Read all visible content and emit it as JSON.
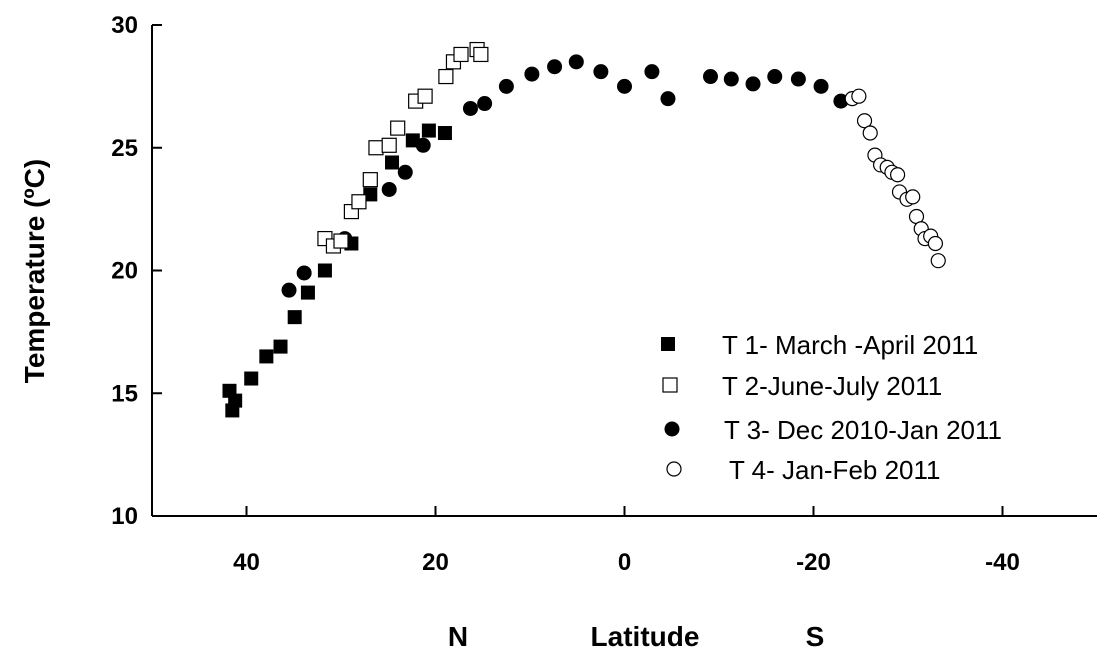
{
  "chart_data": {
    "type": "scatter",
    "title": "",
    "ylabel": "Temperature (ºC)",
    "xlabel": "Latitude",
    "xlabel_left": "N",
    "xlabel_right": "S",
    "xlim": [
      50,
      -50
    ],
    "ylim": [
      10,
      30
    ],
    "xticks": [
      40,
      20,
      0,
      -20,
      -40
    ],
    "yticks": [
      10,
      15,
      20,
      25,
      30
    ],
    "grid": false,
    "legend_position": "bottom-right",
    "series": [
      {
        "name": "T 1- March -April 2011",
        "marker": "filled-square",
        "points": [
          [
            41.8,
            15.1
          ],
          [
            41.5,
            14.3
          ],
          [
            41.2,
            14.7
          ],
          [
            39.5,
            15.6
          ],
          [
            37.9,
            16.5
          ],
          [
            36.4,
            16.9
          ],
          [
            34.9,
            18.1
          ],
          [
            33.5,
            19.1
          ],
          [
            31.7,
            20.0
          ],
          [
            28.9,
            21.1
          ],
          [
            26.9,
            23.1
          ],
          [
            24.6,
            24.4
          ],
          [
            22.4,
            25.3
          ],
          [
            20.7,
            25.7
          ],
          [
            19.0,
            25.6
          ]
        ]
      },
      {
        "name": "T 2-June-July 2011",
        "marker": "open-square",
        "points": [
          [
            31.7,
            21.3
          ],
          [
            30.8,
            21.0
          ],
          [
            30.0,
            21.2
          ],
          [
            28.9,
            22.4
          ],
          [
            28.1,
            22.8
          ],
          [
            26.9,
            23.7
          ],
          [
            26.3,
            25.0
          ],
          [
            24.9,
            25.1
          ],
          [
            24.0,
            25.8
          ],
          [
            22.1,
            26.9
          ],
          [
            21.1,
            27.1
          ],
          [
            18.9,
            27.9
          ],
          [
            18.1,
            28.5
          ],
          [
            17.3,
            28.8
          ],
          [
            15.6,
            29.0
          ],
          [
            15.2,
            28.8
          ]
        ]
      },
      {
        "name": "T 3- Dec 2010-Jan 2011",
        "marker": "filled-circle",
        "points": [
          [
            35.5,
            19.2
          ],
          [
            33.9,
            19.9
          ],
          [
            29.6,
            21.3
          ],
          [
            24.9,
            23.3
          ],
          [
            23.2,
            24.0
          ],
          [
            21.3,
            25.1
          ],
          [
            16.3,
            26.6
          ],
          [
            14.8,
            26.8
          ],
          [
            12.5,
            27.5
          ],
          [
            9.8,
            28.0
          ],
          [
            7.4,
            28.3
          ],
          [
            5.1,
            28.5
          ],
          [
            2.5,
            28.1
          ],
          [
            0.0,
            27.5
          ],
          [
            -2.9,
            28.1
          ],
          [
            -4.6,
            27.0
          ],
          [
            -9.1,
            27.9
          ],
          [
            -11.3,
            27.8
          ],
          [
            -13.6,
            27.6
          ],
          [
            -15.9,
            27.9
          ],
          [
            -18.4,
            27.8
          ],
          [
            -20.8,
            27.5
          ],
          [
            -22.9,
            26.9
          ]
        ]
      },
      {
        "name": "T 4- Jan-Feb 2011",
        "marker": "open-circle",
        "points": [
          [
            -24.1,
            27.0
          ],
          [
            -24.8,
            27.1
          ],
          [
            -25.4,
            26.1
          ],
          [
            -26.0,
            25.6
          ],
          [
            -26.5,
            24.7
          ],
          [
            -27.1,
            24.3
          ],
          [
            -27.8,
            24.2
          ],
          [
            -28.3,
            24.0
          ],
          [
            -28.9,
            23.9
          ],
          [
            -29.1,
            23.2
          ],
          [
            -29.9,
            22.9
          ],
          [
            -30.5,
            23.0
          ],
          [
            -30.9,
            22.2
          ],
          [
            -31.4,
            21.7
          ],
          [
            -31.8,
            21.3
          ],
          [
            -32.4,
            21.4
          ],
          [
            -32.9,
            21.1
          ],
          [
            -33.2,
            20.4
          ]
        ]
      }
    ]
  }
}
